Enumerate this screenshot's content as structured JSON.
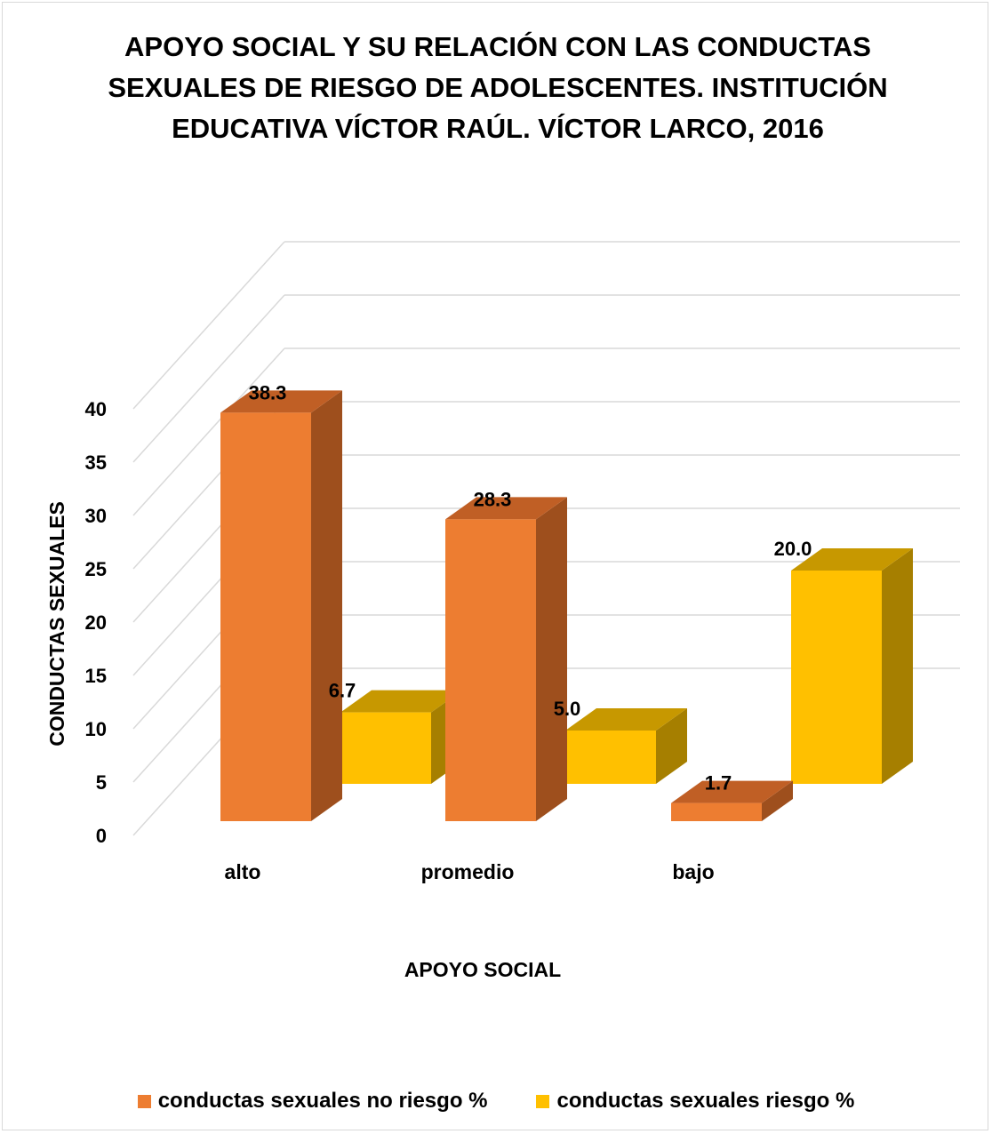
{
  "chart_data": {
    "type": "bar",
    "title": "APOYO SOCIAL Y SU RELACIÓN CON LAS CONDUCTAS SEXUALES DE RIESGO DE ADOLESCENTES. INSTITUCIÓN EDUCATIVA VÍCTOR RAÚL. VÍCTOR LARCO, 2016",
    "title_lines": [
      "APOYO SOCIAL Y SU RELACIÓN CON LAS CONDUCTAS",
      "SEXUALES DE RIESGO DE ADOLESCENTES. INSTITUCIÓN",
      "EDUCATIVA VÍCTOR RAÚL. VÍCTOR LARCO, 2016"
    ],
    "xlabel": "APOYO SOCIAL",
    "ylabel": "CONDUCTAS SEXUALES",
    "categories": [
      "alto",
      "promedio",
      "bajo"
    ],
    "ylim": [
      0,
      40
    ],
    "yticks": [
      0,
      5,
      10,
      15,
      20,
      25,
      30,
      35,
      40
    ],
    "grid": true,
    "legend_position": "bottom",
    "style": "3d-clustered-column",
    "series": [
      {
        "name": "conductas sexuales no riesgo %",
        "values": [
          38.3,
          28.3,
          1.7
        ],
        "labels": [
          "38.3",
          "28.3",
          "1.7"
        ],
        "color": "#ED7D31",
        "side_color": "#9E4F1D",
        "top_color": "#C05F25"
      },
      {
        "name": "conductas sexuales riesgo %",
        "values": [
          6.7,
          5.0,
          20.0
        ],
        "labels": [
          "6.7",
          "5.0",
          "20.0"
        ],
        "color": "#FFC000",
        "side_color": "#A67F00",
        "top_color": "#C79800"
      }
    ]
  }
}
